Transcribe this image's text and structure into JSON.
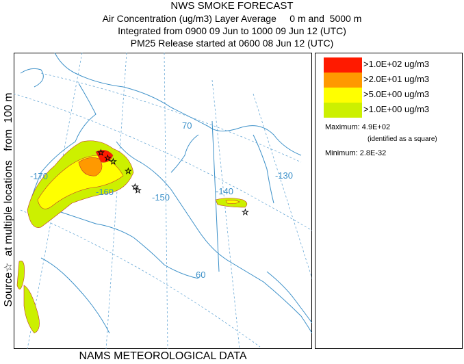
{
  "title": {
    "line1": "NWS SMOKE FORECAST",
    "line2": "Air Concentration (ug/m3) Layer Average     0 m and  5000 m",
    "line3": "Integrated from 0900 09 Jun to 1000 09 Jun 12 (UTC)",
    "line4": "PM25 Release started at 0600 08 Jun 12 (UTC)"
  },
  "side_label": "Source☆  at multiple locations   from  100 m",
  "bottom_label": "NAMS METEOROLOGICAL DATA",
  "map": {
    "meridian_labels": [
      "-170",
      "-160",
      "-150",
      "-140",
      "-130"
    ],
    "parallel_labels": [
      "70",
      "60"
    ],
    "colors": {
      "coast": "#3a8fc8",
      "graticule": "#6aa9d6",
      "contour": "#c0392b"
    }
  },
  "legend": {
    "items": [
      {
        "label": ">1.0E+02 ug/m3",
        "color": "#ff1a00"
      },
      {
        "label": ">2.0E+01 ug/m3",
        "color": "#ff9900"
      },
      {
        "label": ">5.0E+00 ug/m3",
        "color": "#ffff00"
      },
      {
        "label": ">1.0E+00 ug/m3",
        "color": "#ccf000"
      }
    ],
    "maximum": "Maximum: 4.9E+02",
    "maximum_note": "(identified as a square)",
    "minimum": "Minimum: 2.8E-32"
  }
}
